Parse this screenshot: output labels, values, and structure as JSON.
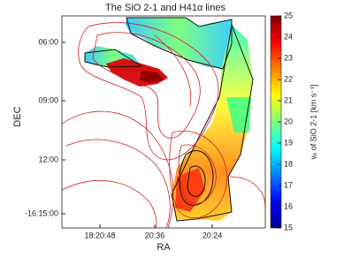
{
  "chart_data": {
    "type": "image",
    "title": "The SiO 2-1 and H41α lines",
    "xlabel": "RA",
    "ylabel": "DEC",
    "x_tick_labels": [
      "18:20:48",
      "20:36",
      "20:24"
    ],
    "y_tick_labels": [
      "06:00",
      "09:00",
      "12:00",
      "-16:15:00"
    ],
    "colorbar_label": "vₑ of SiO 2-1 [km s⁻¹]",
    "clim": [
      15,
      25
    ],
    "cticks": [
      15,
      16,
      17,
      18,
      19,
      20,
      21,
      22,
      23,
      24,
      25
    ],
    "colormap": "jet"
  }
}
